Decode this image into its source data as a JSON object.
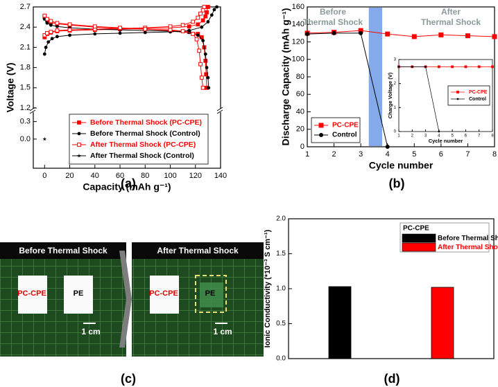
{
  "chart_data": [
    {
      "type": "line",
      "panel_label": "(a)",
      "x_label": "Capacity (mAh g⁻¹)",
      "y_label": "Voltage (V)",
      "xlim": [
        -9,
        140
      ],
      "xticks": [
        0,
        20,
        40,
        60,
        80,
        100,
        120,
        140
      ],
      "ylim": [
        [
          -0.5,
          0.45
        ],
        [
          1.2,
          2.7
        ]
      ],
      "yticks": [
        {
          "value": 0,
          "label": "0.0"
        },
        0.3,
        1.2,
        1.5,
        1.8,
        2.1,
        2.4,
        2.7
      ],
      "legend": "lower right",
      "series": [
        {
          "name": "Before Thermal Shock (PC-CPE)",
          "color": "#ff0000",
          "marker": "square",
          "x": [
            0,
            2,
            5,
            10,
            20,
            40,
            60,
            80,
            100,
            115,
            122,
            126,
            128,
            129,
            130,
            null,
            0,
            2,
            5,
            10,
            20,
            40,
            60,
            80,
            100,
            115,
            122,
            125,
            127,
            128,
            128.5,
            129
          ],
          "values": [
            2.25,
            2.3,
            2.32,
            2.34,
            2.35,
            2.36,
            2.37,
            2.38,
            2.39,
            2.41,
            2.44,
            2.5,
            2.56,
            2.62,
            2.7,
            null,
            2.55,
            2.5,
            2.47,
            2.45,
            2.43,
            2.4,
            2.38,
            2.37,
            2.35,
            2.33,
            2.3,
            2.25,
            2.1,
            1.9,
            1.7,
            1.5
          ]
        },
        {
          "name": "Before Thermal Shock (Control)",
          "color": "#000000",
          "marker": "circle",
          "x": [
            0,
            1,
            3,
            6,
            10,
            20,
            40,
            60,
            80,
            100,
            115,
            125,
            130,
            133,
            135,
            137,
            null,
            0,
            2,
            5,
            10,
            20,
            40,
            60,
            80,
            100,
            115,
            122,
            126,
            128,
            129,
            130,
            130.5
          ],
          "values": [
            2.0,
            2.1,
            2.18,
            2.23,
            2.26,
            2.28,
            2.3,
            2.31,
            2.32,
            2.33,
            2.35,
            2.4,
            2.48,
            2.58,
            2.66,
            2.7,
            null,
            2.52,
            2.46,
            2.43,
            2.41,
            2.39,
            2.37,
            2.36,
            2.35,
            2.34,
            2.32,
            2.28,
            2.2,
            2.0,
            1.8,
            1.65,
            1.5
          ]
        },
        {
          "name": "After Thermal Shock (PC-CPE)",
          "color": "#ff0000",
          "marker": "square-open",
          "x": [
            0,
            2,
            5,
            10,
            20,
            40,
            60,
            80,
            100,
            110,
            118,
            122,
            124,
            126,
            127,
            null,
            0,
            2,
            5,
            10,
            20,
            40,
            60,
            80,
            100,
            110,
            118,
            121,
            123,
            124,
            125,
            126
          ],
          "values": [
            2.28,
            2.31,
            2.33,
            2.35,
            2.36,
            2.37,
            2.38,
            2.39,
            2.41,
            2.43,
            2.48,
            2.54,
            2.6,
            2.65,
            2.7,
            null,
            2.57,
            2.52,
            2.49,
            2.46,
            2.44,
            2.41,
            2.39,
            2.37,
            2.36,
            2.34,
            2.3,
            2.22,
            2.05,
            1.85,
            1.65,
            1.5
          ]
        },
        {
          "name": "After Thermal Shock (Control)",
          "color": "#000000",
          "marker": "star",
          "x": [
            0
          ],
          "values": [
            0
          ]
        }
      ]
    },
    {
      "type": "line",
      "panel_label": "(b)",
      "x_label": "Cycle number",
      "y_label": "Discharge Capacity (mAh g⁻¹)",
      "xlim": [
        1,
        8
      ],
      "xticks": [
        1,
        2,
        3,
        4,
        5,
        6,
        7,
        8
      ],
      "ylim": [
        0,
        160
      ],
      "yticks": [
        0,
        20,
        40,
        60,
        80,
        100,
        120,
        140,
        160
      ],
      "legend": "lower left",
      "shaded_band": {
        "x": [
          3.3,
          3.8
        ],
        "color": "#6f9be8"
      },
      "annotations": [
        [
          "Before",
          "Thermal Shock"
        ],
        [
          "After",
          "Thermal Shock"
        ]
      ],
      "series": [
        {
          "name": "PC-CPE",
          "color": "#ff0000",
          "marker": "square",
          "x": [
            1,
            2,
            3,
            4,
            5,
            6,
            7,
            8
          ],
          "values": [
            130,
            131,
            133,
            129,
            126,
            128,
            127,
            126
          ]
        },
        {
          "name": "Control",
          "color": "#000000",
          "marker": "circle",
          "x": [
            1,
            2,
            3,
            4
          ],
          "values": [
            129,
            130,
            130,
            0
          ]
        }
      ],
      "inset": {
        "type": "line",
        "x_label": "Cycle number",
        "y_label": "Charge Voltage (V)",
        "xlim": [
          1,
          8
        ],
        "xticks": [
          1,
          2,
          3,
          4,
          5,
          6,
          7,
          8
        ],
        "ylim": [
          0,
          3
        ],
        "yticks": [
          0,
          1,
          2,
          3
        ],
        "legend": "center right",
        "series": [
          {
            "name": "PC-CPE",
            "color": "#ff0000",
            "marker": "square",
            "x": [
              1,
              2,
              3,
              4,
              5,
              6,
              7,
              8
            ],
            "values": [
              2.7,
              2.7,
              2.7,
              2.7,
              2.7,
              2.7,
              2.7,
              2.7
            ]
          },
          {
            "name": "Control",
            "color": "#000000",
            "marker": "circle",
            "x": [
              1,
              2,
              3,
              4
            ],
            "values": [
              2.7,
              2.7,
              2.7,
              0
            ]
          }
        ]
      }
    },
    {
      "type": "bar",
      "panel_label": "(d)",
      "y_label": "Ionic Conductivity (*10⁻³ S cm⁻¹)",
      "categories": [
        null,
        null
      ],
      "legend": "upper right",
      "legend_title": "PC-CPE",
      "ylim": [
        0,
        2
      ],
      "yticks": [
        {
          "value": 0,
          "label": "0.0"
        },
        0.5,
        {
          "value": 1,
          "label": "1.0"
        },
        1.5,
        {
          "value": 2,
          "label": "2.0"
        }
      ],
      "series": [
        {
          "name": "Before Thermal Shock",
          "color": "#000000",
          "values": [
            1.03,
            null
          ]
        },
        {
          "name": "After Thermal Shock",
          "color": "#ff0000",
          "values": [
            null,
            1.02
          ]
        }
      ]
    }
  ],
  "photo_panel": {
    "panel_label": "(c)",
    "photos": [
      {
        "title": "Before  Thermal Shock",
        "samples": [
          "PC-CPE",
          "PE"
        ],
        "scale": "1 cm"
      },
      {
        "title": "After Thermal Shock",
        "samples": [
          "PC-CPE",
          "PE"
        ],
        "scale": "1 cm"
      }
    ]
  }
}
